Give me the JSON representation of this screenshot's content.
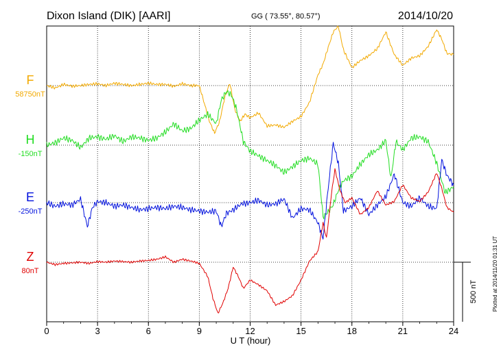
{
  "header": {
    "station": "Dixon Island (DIK)  [AARI]",
    "coords": "GG ( 73.55°,  80.57°)",
    "date": "2014/10/20"
  },
  "footer_note": "Plotted at 2014/11/20 01:31 UT",
  "scale_label": "500 nT",
  "chart_data": {
    "type": "line",
    "title": "Dixon Island (DIK)  [AARI]",
    "xlabel": "U T (hour)",
    "ylabel": "",
    "xlim": [
      0,
      24
    ],
    "x_ticks": [
      "0",
      "3",
      "6",
      "9",
      "12",
      "15",
      "18",
      "21",
      "24"
    ],
    "y_scale_nT_per_division": 500,
    "grid": true,
    "series": [
      {
        "name": "F",
        "baseline": "58750nT",
        "color": "#f2a900",
        "x": [
          0,
          0.5,
          1,
          1.5,
          2,
          2.5,
          3,
          3.5,
          4,
          4.5,
          5,
          5.5,
          6,
          6.5,
          7,
          7.5,
          8,
          8.5,
          9,
          9.3,
          9.6,
          9.9,
          10.2,
          10.5,
          10.8,
          11.1,
          11.4,
          11.7,
          12,
          12.5,
          13,
          13.5,
          14,
          14.5,
          15,
          15.5,
          16,
          16.3,
          16.6,
          16.9,
          17.2,
          17.5,
          18,
          18.5,
          19,
          19.5,
          20,
          20.5,
          21,
          21.5,
          22,
          22.5,
          23,
          23.3,
          23.6,
          24
        ],
        "values": [
          0,
          -20,
          10,
          -5,
          0,
          10,
          15,
          0,
          20,
          10,
          0,
          10,
          20,
          10,
          10,
          -5,
          15,
          0,
          0,
          -150,
          -300,
          -400,
          -300,
          -100,
          20,
          -200,
          -300,
          -240,
          -270,
          -230,
          -340,
          -330,
          -350,
          -300,
          -260,
          -140,
          90,
          180,
          320,
          450,
          500,
          300,
          150,
          210,
          250,
          310,
          450,
          260,
          170,
          230,
          250,
          330,
          470,
          390,
          270,
          260
        ]
      },
      {
        "name": "H",
        "baseline": "-150nT",
        "color": "#22dd22",
        "x": [
          0,
          0.5,
          1,
          1.5,
          2,
          2.5,
          3,
          3.5,
          4,
          4.5,
          5,
          5.5,
          6,
          6.5,
          7,
          7.5,
          8,
          8.5,
          9,
          9.5,
          10,
          10.3,
          10.6,
          10.9,
          11.2,
          11.6,
          12,
          12.5,
          13,
          13.5,
          14,
          14.5,
          15,
          15.5,
          16,
          16.3,
          16.6,
          16.9,
          17.2,
          17.5,
          18,
          18.5,
          19,
          19.5,
          20,
          20.3,
          20.6,
          21,
          21.5,
          22,
          22.5,
          23,
          23.5,
          24
        ],
        "values": [
          0,
          20,
          60,
          40,
          -20,
          60,
          70,
          50,
          80,
          30,
          70,
          60,
          40,
          60,
          110,
          180,
          120,
          140,
          210,
          260,
          180,
          380,
          450,
          420,
          300,
          30,
          -50,
          -90,
          -130,
          -170,
          -230,
          -180,
          -130,
          -110,
          -160,
          -600,
          -560,
          -500,
          -380,
          -300,
          -260,
          -160,
          -80,
          -40,
          40,
          -280,
          30,
          -40,
          60,
          70,
          30,
          -150,
          -400,
          -350
        ]
      },
      {
        "name": "E",
        "baseline": "-250nT",
        "color": "#0010dd",
        "x": [
          0,
          0.5,
          1,
          1.5,
          2,
          2.4,
          2.7,
          3,
          3.5,
          4,
          4.5,
          5,
          5.5,
          6,
          6.5,
          7,
          7.5,
          8,
          8.5,
          9,
          9.5,
          10,
          10.3,
          10.6,
          11,
          11.5,
          12,
          12.5,
          13,
          13.5,
          14,
          14.5,
          15,
          15.5,
          16,
          16.3,
          16.6,
          16.9,
          17.2,
          17.5,
          18,
          18.5,
          19,
          19.5,
          20,
          20.5,
          21,
          21.5,
          22,
          22.5,
          23,
          23.3,
          23.6,
          24
        ],
        "values": [
          0,
          -30,
          -10,
          -20,
          30,
          -200,
          -40,
          10,
          0,
          -30,
          -20,
          -40,
          -60,
          -50,
          -40,
          -50,
          -30,
          -40,
          -60,
          -70,
          -80,
          -70,
          -200,
          -90,
          -60,
          -10,
          0,
          20,
          -20,
          -10,
          30,
          -130,
          -50,
          -60,
          -170,
          -300,
          120,
          500,
          330,
          -70,
          -30,
          40,
          -100,
          -20,
          50,
          240,
          0,
          -30,
          40,
          -30,
          -50,
          360,
          230,
          150
        ]
      },
      {
        "name": "Z",
        "baseline": "80nT",
        "color": "#e00000",
        "x": [
          0,
          0.5,
          1,
          1.5,
          2,
          2.5,
          3,
          3.5,
          4,
          4.5,
          5,
          5.5,
          6,
          6.5,
          7,
          7.5,
          8,
          8.5,
          9,
          9.5,
          9.8,
          10.1,
          10.4,
          10.7,
          11,
          11.3,
          11.6,
          12,
          12.5,
          13,
          13.5,
          14,
          14.5,
          15,
          15.5,
          16,
          16.3,
          16.5,
          16.8,
          17,
          17.3,
          17.6,
          18,
          18.5,
          19,
          19.5,
          20,
          20.5,
          21,
          21.5,
          22,
          22.5,
          23,
          23.3,
          23.6,
          24
        ],
        "values": [
          0,
          -20,
          -10,
          -5,
          0,
          -10,
          5,
          0,
          10,
          5,
          0,
          10,
          15,
          25,
          45,
          0,
          25,
          10,
          -10,
          -120,
          -300,
          -430,
          -340,
          -220,
          -40,
          -120,
          -220,
          -150,
          -190,
          -240,
          -360,
          -330,
          -280,
          -150,
          10,
          90,
          330,
          200,
          580,
          780,
          600,
          500,
          540,
          400,
          460,
          600,
          480,
          510,
          650,
          540,
          510,
          590,
          750,
          620,
          460,
          420
        ]
      }
    ]
  }
}
